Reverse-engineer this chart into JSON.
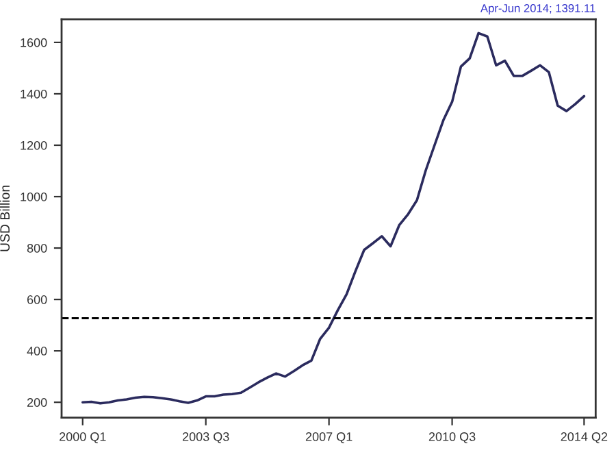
{
  "chart_data": {
    "type": "line",
    "ylabel": "USD Billion",
    "categories": [
      "2000 Q1",
      null,
      null,
      null,
      null,
      null,
      null,
      null,
      null,
      null,
      null,
      null,
      null,
      null,
      "2003 Q3",
      null,
      null,
      null,
      null,
      null,
      null,
      null,
      null,
      null,
      null,
      null,
      null,
      null,
      "2007 Q1",
      null,
      null,
      null,
      null,
      null,
      null,
      null,
      null,
      null,
      null,
      null,
      null,
      null,
      "2010 Q3",
      null,
      null,
      null,
      null,
      null,
      null,
      null,
      null,
      null,
      null,
      null,
      null,
      null,
      null,
      "2014 Q2"
    ],
    "series": [
      {
        "color": "#2b2b5e",
        "values": [
          200,
          202,
          196,
          200,
          207,
          211,
          218,
          221,
          220,
          216,
          211,
          204,
          198,
          207,
          223,
          223,
          230,
          232,
          237,
          257,
          278,
          296,
          312,
          300,
          321,
          344,
          362,
          447,
          490,
          558,
          620,
          709,
          793,
          819,
          846,
          807,
          890,
          932,
          986,
          1102,
          1200,
          1297,
          1369,
          1506,
          1538,
          1636,
          1623,
          1511,
          1529,
          1470,
          1470,
          1490,
          1511,
          1484,
          1354,
          1333,
          1360,
          1391
        ]
      }
    ],
    "ylim": [
      140,
      1690
    ],
    "yticks": [
      200,
      400,
      600,
      800,
      1000,
      1200,
      1400,
      1600
    ],
    "ref_lines": [
      {
        "axis": "y",
        "value": 527,
        "line_style": "dashed",
        "color": "#000000"
      }
    ],
    "annotations": [
      "Apr-Jun 2014; 1391.11"
    ],
    "grid": false,
    "legend": false,
    "marker": "none",
    "line_style": "solid"
  }
}
